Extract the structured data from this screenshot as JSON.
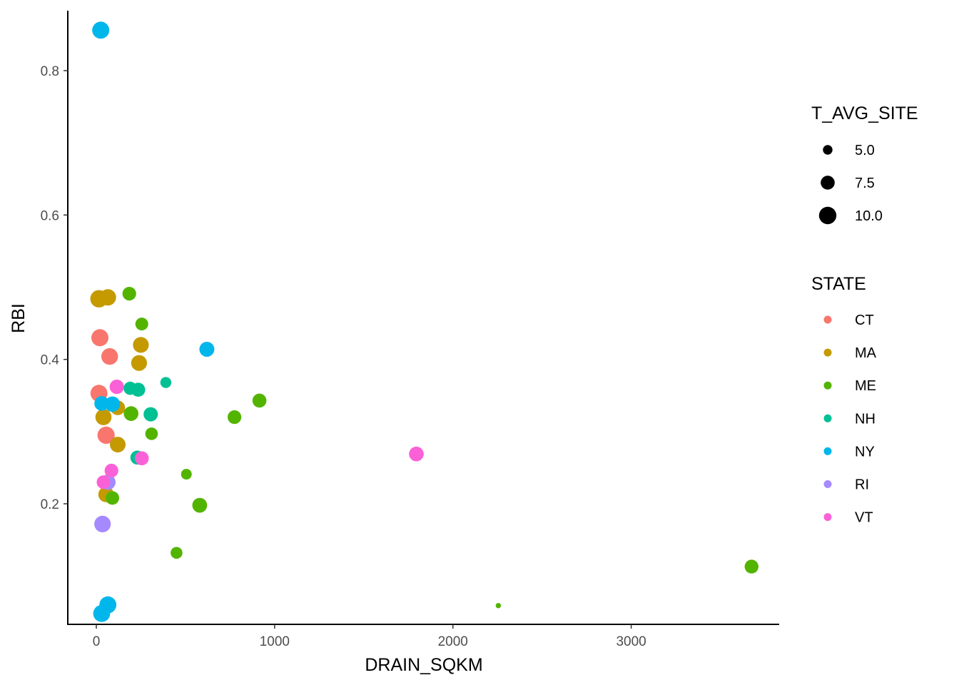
{
  "chart_data": {
    "type": "scatter",
    "xlabel": "DRAIN_SQKM",
    "ylabel": "RBI",
    "xlim": [
      -160,
      3830
    ],
    "ylim": [
      0.033,
      0.883
    ],
    "x_ticks": [
      0,
      1000,
      2000,
      3000
    ],
    "x_tick_labels": [
      "0",
      "1000",
      "2000",
      "3000"
    ],
    "y_ticks": [
      0.2,
      0.4,
      0.6,
      0.8
    ],
    "y_tick_labels": [
      "0.2",
      "0.4",
      "0.6",
      "0.8"
    ],
    "grid": false,
    "legend_position": "right",
    "size_legend": {
      "title": "T_AVG_SITE",
      "entries": [
        {
          "label": "5.0",
          "value": 5.0
        },
        {
          "label": "7.5",
          "value": 7.5
        },
        {
          "label": "10.0",
          "value": 10.0
        }
      ]
    },
    "color_legend": {
      "title": "STATE",
      "entries": [
        {
          "label": "CT",
          "color": "#F8766D"
        },
        {
          "label": "MA",
          "color": "#C49A00"
        },
        {
          "label": "ME",
          "color": "#53B400"
        },
        {
          "label": "NH",
          "color": "#00C094"
        },
        {
          "label": "NY",
          "color": "#00B6EB"
        },
        {
          "label": "RI",
          "color": "#A58AFF"
        },
        {
          "label": "VT",
          "color": "#FB61D7"
        }
      ]
    },
    "series": [
      {
        "name": "CT",
        "points": [
          {
            "x": 20,
            "y": 0.43,
            "t": 9.8
          },
          {
            "x": 75,
            "y": 0.404,
            "t": 9.5
          },
          {
            "x": 15,
            "y": 0.353,
            "t": 9.7
          },
          {
            "x": 55,
            "y": 0.295,
            "t": 9.9
          }
        ]
      },
      {
        "name": "MA",
        "points": [
          {
            "x": 15,
            "y": 0.484,
            "t": 10.0
          },
          {
            "x": 65,
            "y": 0.486,
            "t": 9.3
          },
          {
            "x": 250,
            "y": 0.42,
            "t": 8.8
          },
          {
            "x": 240,
            "y": 0.395,
            "t": 8.8
          },
          {
            "x": 40,
            "y": 0.32,
            "t": 9.0
          },
          {
            "x": 120,
            "y": 0.333,
            "t": 8.0
          },
          {
            "x": 120,
            "y": 0.282,
            "t": 8.7
          },
          {
            "x": 55,
            "y": 0.213,
            "t": 8.6
          }
        ]
      },
      {
        "name": "ME",
        "points": [
          {
            "x": 185,
            "y": 0.491,
            "t": 7.3
          },
          {
            "x": 255,
            "y": 0.449,
            "t": 6.8
          },
          {
            "x": 195,
            "y": 0.325,
            "t": 8.0
          },
          {
            "x": 310,
            "y": 0.297,
            "t": 6.6
          },
          {
            "x": 90,
            "y": 0.208,
            "t": 7.2
          },
          {
            "x": 505,
            "y": 0.241,
            "t": 5.6
          },
          {
            "x": 580,
            "y": 0.198,
            "t": 8.1
          },
          {
            "x": 450,
            "y": 0.132,
            "t": 6.2
          },
          {
            "x": 775,
            "y": 0.32,
            "t": 7.3
          },
          {
            "x": 915,
            "y": 0.343,
            "t": 7.5
          },
          {
            "x": 2255,
            "y": 0.059,
            "t": 3.5
          },
          {
            "x": 3675,
            "y": 0.113,
            "t": 7.4
          }
        ]
      },
      {
        "name": "NH",
        "points": [
          {
            "x": 190,
            "y": 0.36,
            "t": 7.0
          },
          {
            "x": 235,
            "y": 0.358,
            "t": 7.5
          },
          {
            "x": 390,
            "y": 0.368,
            "t": 5.7
          },
          {
            "x": 305,
            "y": 0.324,
            "t": 7.7
          },
          {
            "x": 230,
            "y": 0.264,
            "t": 7.5
          }
        ]
      },
      {
        "name": "NY",
        "points": [
          {
            "x": 25,
            "y": 0.856,
            "t": 9.8
          },
          {
            "x": 620,
            "y": 0.414,
            "t": 8.2
          },
          {
            "x": 30,
            "y": 0.339,
            "t": 8.0
          },
          {
            "x": 90,
            "y": 0.338,
            "t": 8.5
          },
          {
            "x": 65,
            "y": 0.06,
            "t": 9.7
          },
          {
            "x": 30,
            "y": 0.048,
            "t": 9.7
          }
        ]
      },
      {
        "name": "RI",
        "points": [
          {
            "x": 65,
            "y": 0.23,
            "t": 8.5
          },
          {
            "x": 35,
            "y": 0.172,
            "t": 9.4
          }
        ]
      },
      {
        "name": "VT",
        "points": [
          {
            "x": 115,
            "y": 0.362,
            "t": 7.8
          },
          {
            "x": 85,
            "y": 0.246,
            "t": 7.3
          },
          {
            "x": 255,
            "y": 0.263,
            "t": 7.5
          },
          {
            "x": 40,
            "y": 0.23,
            "t": 7.2
          },
          {
            "x": 1795,
            "y": 0.269,
            "t": 8.0
          }
        ]
      }
    ]
  }
}
